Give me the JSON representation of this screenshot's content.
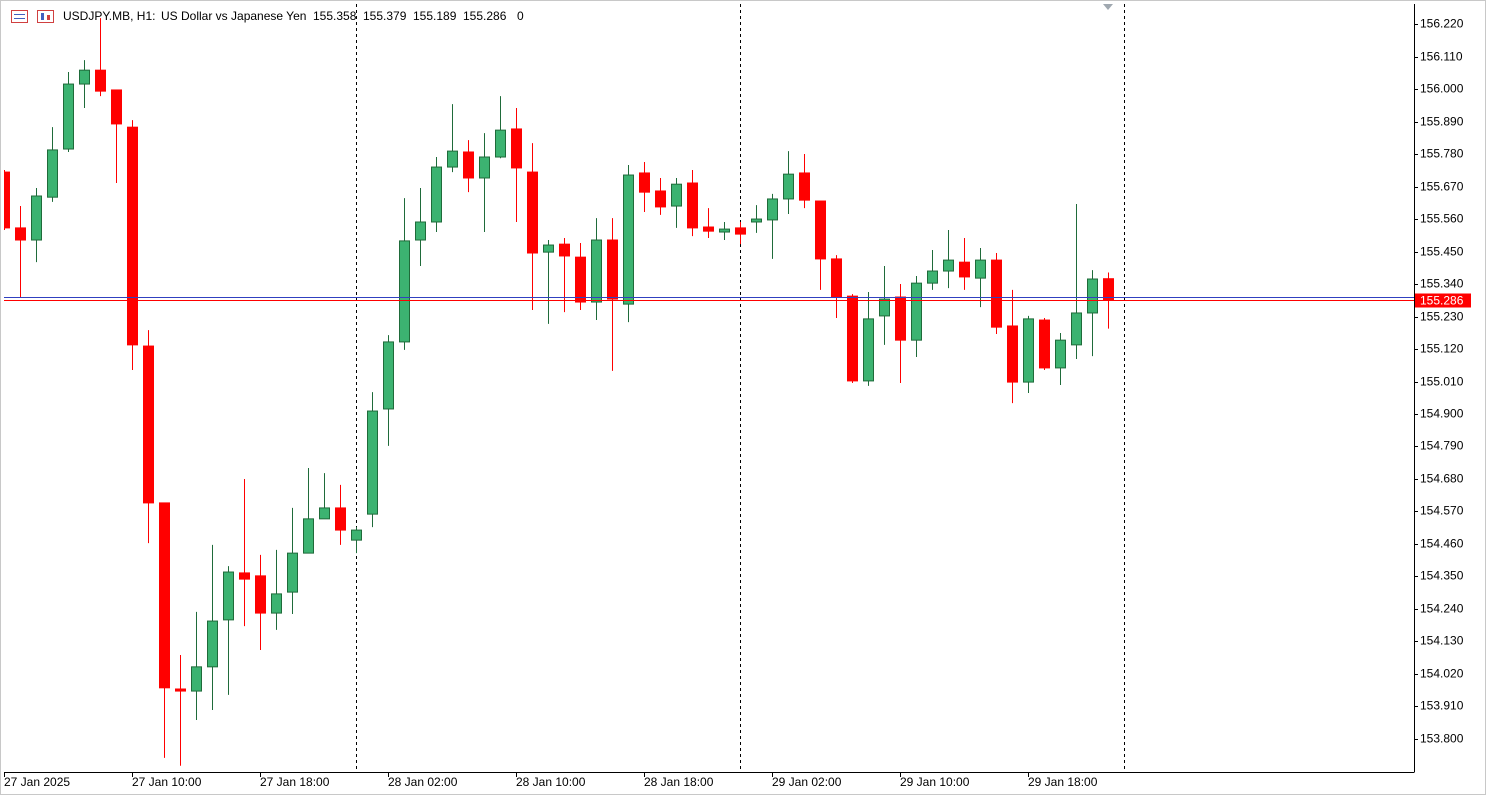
{
  "chart_data": {
    "type": "candlestick",
    "title": "USDJPY.MB, H1:",
    "subtitle": "US Dollar vs Japanese Yen",
    "tick_volume": 0,
    "categories": [
      "27 Jan 2025",
      null,
      null,
      null,
      null,
      null,
      null,
      null,
      "27 Jan 10:00",
      null,
      null,
      null,
      null,
      null,
      null,
      null,
      "27 Jan 18:00",
      null,
      null,
      null,
      null,
      null,
      null,
      null,
      "28 Jan 02:00",
      null,
      null,
      null,
      null,
      null,
      null,
      null,
      "28 Jan 10:00",
      null,
      null,
      null,
      null,
      null,
      null,
      null,
      "28 Jan 18:00",
      null,
      null,
      null,
      null,
      null,
      null,
      null,
      "29 Jan 02:00",
      null,
      null,
      null,
      null,
      null,
      null,
      null,
      "29 Jan 10:00",
      null,
      null,
      null,
      null,
      null,
      null,
      null,
      "29 Jan 18:00",
      null,
      null,
      null,
      null,
      null
    ],
    "open": [
      155.719,
      155.53,
      155.489,
      155.634,
      155.797,
      156.017,
      156.064,
      155.997,
      155.871,
      155.13,
      154.599,
      153.969,
      153.962,
      154.044,
      154.203,
      154.362,
      154.352,
      154.226,
      154.297,
      154.429,
      154.545,
      154.582,
      154.473,
      154.561,
      154.917,
      155.144,
      155.489,
      155.55,
      155.736,
      155.787,
      155.699,
      155.77,
      155.865,
      155.719,
      155.448,
      155.475,
      155.431,
      155.279,
      155.489,
      155.272,
      155.716,
      155.655,
      155.604,
      155.682,
      155.533,
      155.516,
      155.53,
      155.55,
      155.557,
      155.628,
      155.716,
      155.621,
      155.425,
      155.299,
      155.012,
      155.232,
      155.296,
      155.15,
      155.343,
      155.384,
      155.414,
      155.36,
      155.421,
      155.198,
      155.008,
      155.218,
      155.056,
      155.134,
      155.242,
      155.358
    ],
    "high": [
      155.726,
      155.604,
      155.665,
      155.871,
      156.058,
      156.098,
      156.24,
      155.997,
      155.895,
      155.184,
      154.599,
      154.084,
      154.23,
      154.457,
      154.385,
      154.68,
      154.423,
      154.44,
      154.582,
      154.717,
      154.7,
      154.66,
      154.517,
      154.974,
      155.167,
      155.631,
      155.665,
      155.77,
      155.949,
      155.827,
      155.851,
      155.976,
      155.936,
      155.817,
      155.489,
      155.496,
      155.479,
      155.563,
      155.563,
      155.743,
      155.753,
      155.699,
      155.699,
      155.726,
      155.597,
      155.55,
      155.55,
      155.607,
      155.645,
      155.79,
      155.78,
      155.621,
      155.438,
      155.306,
      155.313,
      155.401,
      155.34,
      155.367,
      155.455,
      155.523,
      155.496,
      155.462,
      155.445,
      155.32,
      155.232,
      155.225,
      155.174,
      155.611,
      155.387,
      155.379
    ],
    "low": [
      155.523,
      155.293,
      155.414,
      155.618,
      155.787,
      155.936,
      155.976,
      155.682,
      155.049,
      154.463,
      153.736,
      153.709,
      153.864,
      153.898,
      153.949,
      154.182,
      154.101,
      154.169,
      154.223,
      154.429,
      154.545,
      154.457,
      154.429,
      154.517,
      154.792,
      155.117,
      155.401,
      155.516,
      155.719,
      155.651,
      155.516,
      155.766,
      155.55,
      155.252,
      155.205,
      155.245,
      155.252,
      155.218,
      155.046,
      155.211,
      155.584,
      155.574,
      155.53,
      155.502,
      155.496,
      155.489,
      155.475,
      155.513,
      155.425,
      155.577,
      155.597,
      155.32,
      155.225,
      155.005,
      154.995,
      155.134,
      155.005,
      155.093,
      155.32,
      155.326,
      155.32,
      155.262,
      155.171,
      154.937,
      154.971,
      155.049,
      154.998,
      155.086,
      155.096,
      155.189
    ],
    "close": [
      155.53,
      155.489,
      155.638,
      155.794,
      156.017,
      156.064,
      155.993,
      155.882,
      155.134,
      154.599,
      153.973,
      153.962,
      154.044,
      154.199,
      154.365,
      154.341,
      154.226,
      154.291,
      154.429,
      154.545,
      154.582,
      154.507,
      154.507,
      154.91,
      155.144,
      155.486,
      155.55,
      155.736,
      155.79,
      155.699,
      155.77,
      155.861,
      155.733,
      155.445,
      155.472,
      155.435,
      155.279,
      155.489,
      155.289,
      155.709,
      155.651,
      155.601,
      155.678,
      155.53,
      155.519,
      155.526,
      155.509,
      155.56,
      155.628,
      155.712,
      155.624,
      155.425,
      155.296,
      155.012,
      155.222,
      155.289,
      155.15,
      155.343,
      155.384,
      155.421,
      155.364,
      155.421,
      155.194,
      155.008,
      155.222,
      155.056,
      155.15,
      155.242,
      155.357,
      155.286
    ],
    "up_color": "#3cb371",
    "down_color": "#ff0000",
    "ask": 155.296,
    "ask_color": "#3040c0",
    "separators": [
      22,
      46,
      70
    ],
    "ylim": [
      153.688,
      156.288
    ],
    "yticks": [
      {
        "value": 156.22,
        "label": "156.220"
      },
      {
        "value": 156.11,
        "label": "156.110"
      },
      {
        "value": 156.0,
        "label": "156.000"
      },
      {
        "value": 155.89,
        "label": "155.890"
      },
      {
        "value": 155.78,
        "label": "155.780"
      },
      {
        "value": 155.67,
        "label": "155.670"
      },
      {
        "value": 155.56,
        "label": "155.560"
      },
      {
        "value": 155.45,
        "label": "155.450"
      },
      {
        "value": 155.34,
        "label": "155.340"
      },
      {
        "value": 155.23,
        "label": "155.230"
      },
      {
        "value": 155.12,
        "label": "155.120"
      },
      {
        "value": 155.01,
        "label": "155.010"
      },
      {
        "value": 154.9,
        "label": "154.900"
      },
      {
        "value": 154.79,
        "label": "154.790"
      },
      {
        "value": 154.68,
        "label": "154.680"
      },
      {
        "value": 154.57,
        "label": "154.570"
      },
      {
        "value": 154.46,
        "label": "154.460"
      },
      {
        "value": 154.35,
        "label": "154.350"
      },
      {
        "value": 154.24,
        "label": "154.240"
      },
      {
        "value": 154.13,
        "label": "154.130"
      },
      {
        "value": 154.02,
        "label": "154.020"
      },
      {
        "value": 153.91,
        "label": "153.910"
      },
      {
        "value": 153.8,
        "label": "153.800"
      }
    ],
    "grid": false
  }
}
